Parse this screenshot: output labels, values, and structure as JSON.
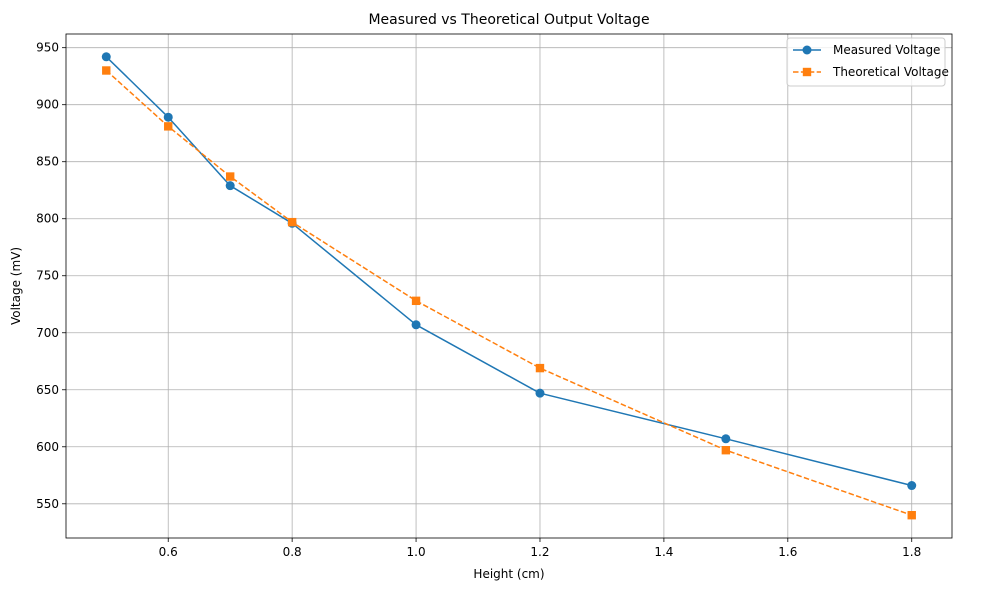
{
  "chart_data": {
    "type": "line",
    "title": "Measured vs Theoretical Output Voltage",
    "xlabel": "Height (cm)",
    "ylabel": "Voltage (mV)",
    "xlim": [
      0.435,
      1.865
    ],
    "ylim": [
      520,
      962
    ],
    "xticks": [
      0.6,
      0.8,
      1.0,
      1.2,
      1.4,
      1.6,
      1.8
    ],
    "xtick_labels": [
      "0.6",
      "0.8",
      "1.0",
      "1.2",
      "1.4",
      "1.6",
      "1.8"
    ],
    "yticks": [
      550,
      600,
      650,
      700,
      750,
      800,
      850,
      900,
      950
    ],
    "ytick_labels": [
      "550",
      "600",
      "650",
      "700",
      "750",
      "800",
      "850",
      "900",
      "950"
    ],
    "grid": true,
    "legend_position": "top-right",
    "x": [
      0.5,
      0.6,
      0.7,
      0.8,
      1.0,
      1.2,
      1.5,
      1.8
    ],
    "series": [
      {
        "name": "Measured Voltage",
        "values": [
          942,
          889,
          829,
          796,
          707,
          647,
          607,
          566
        ],
        "color": "#1f77b4",
        "marker": "circle",
        "line_style": "solid"
      },
      {
        "name": "Theoretical Voltage",
        "values": [
          930,
          881,
          837,
          797,
          728,
          669,
          597,
          540
        ],
        "color": "#ff7f0e",
        "marker": "square",
        "line_style": "dashed"
      }
    ]
  }
}
